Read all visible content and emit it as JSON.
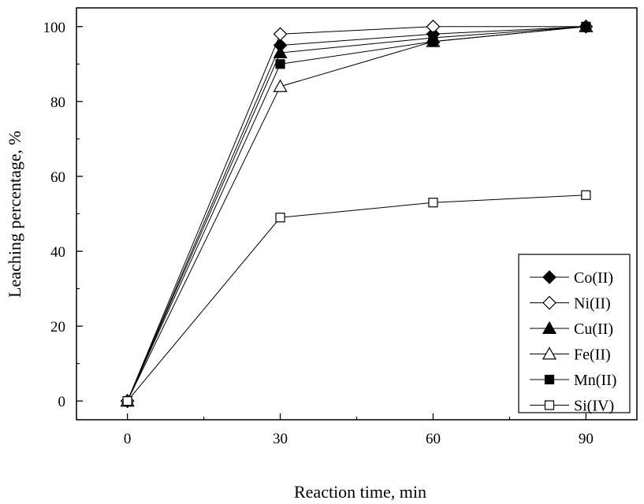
{
  "chart_data": {
    "type": "line",
    "title": "",
    "xlabel": "Reaction time, min",
    "ylabel": "Leaching percentage, %",
    "xlim": [
      -10,
      100
    ],
    "ylim": [
      -5,
      105
    ],
    "x": [
      0,
      30,
      60,
      90
    ],
    "xticks": [
      0,
      30,
      60,
      90
    ],
    "yticks": [
      0,
      20,
      40,
      60,
      80,
      100
    ],
    "xtick_labels": [
      "0",
      "30",
      "60",
      "90"
    ],
    "ytick_labels": [
      "0",
      "20",
      "40",
      "60",
      "80",
      "100"
    ],
    "legend_position": "bottom-right",
    "grid": false,
    "series": [
      {
        "name": "Co(II)",
        "marker": "diamond-filled",
        "values": [
          0,
          95,
          98,
          100
        ]
      },
      {
        "name": "Ni(II)",
        "marker": "diamond-open",
        "values": [
          0,
          98,
          100,
          100
        ]
      },
      {
        "name": "Cu(II)",
        "marker": "triangle-filled",
        "values": [
          0,
          93,
          97,
          100
        ]
      },
      {
        "name": "Fe(II)",
        "marker": "triangle-open",
        "values": [
          0,
          84,
          96,
          100
        ]
      },
      {
        "name": "Mn(II)",
        "marker": "square-filled",
        "values": [
          0,
          90,
          96,
          100
        ]
      },
      {
        "name": "Si(IV)",
        "marker": "square-open",
        "values": [
          0,
          49,
          53,
          55
        ]
      }
    ],
    "colors": {
      "line": "#000000",
      "marker_fill": "#000000",
      "open_fill": "#ffffff"
    }
  }
}
